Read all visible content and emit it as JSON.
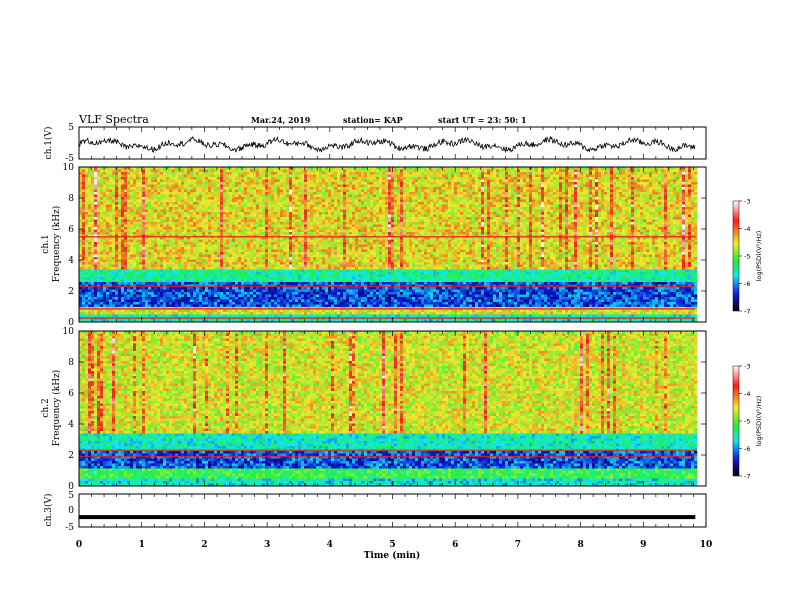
{
  "header": {
    "title": "VLF Spectra",
    "date": "Mar.24, 2019",
    "station": "station= KAP",
    "start": "start  UT  =  23: 50: 1"
  },
  "colors": {
    "blue_low": "#0a14d8",
    "cyan": "#12e8f0",
    "green": "#23f03c",
    "yellow": "#f3ea2c",
    "red": "#e4201c",
    "trace": "#000000"
  },
  "chart_data": [
    {
      "type": "line",
      "name": "ch.1(V) waveform",
      "ylabel": "ch.1(V)",
      "xlim": [
        0,
        10
      ],
      "ylim": [
        -5,
        5
      ],
      "y_ticks": [
        "5",
        "-5"
      ],
      "x_extent_min": 9.83,
      "description_level": "noisy oscillation roughly between -2.5 and 1.5 V"
    },
    {
      "type": "heatmap",
      "ylabel_lines": [
        "ch.1",
        "Frequency (kHz)"
      ],
      "xlim": [
        0,
        9.83
      ],
      "ylim": [
        0,
        10
      ],
      "y_ticks": [
        "0",
        "2",
        "4",
        "6",
        "8",
        "10"
      ],
      "colorbar": {
        "label": "log(PSD)(V²/Hz)",
        "range": [
          -7,
          -3
        ],
        "ticks": [
          "-3",
          "-4",
          "-5",
          "-6",
          "-7"
        ]
      },
      "bands_khz": [
        {
          "from": 0,
          "to": 0.5,
          "level": -5.5
        },
        {
          "from": 0.5,
          "to": 1.0,
          "level": -4.3
        },
        {
          "from": 1.0,
          "to": 2.6,
          "level": -6.2
        },
        {
          "from": 2.6,
          "to": 3.5,
          "level": -5.4
        },
        {
          "from": 3.5,
          "to": 10,
          "level": -4.2
        }
      ],
      "lines_khz": [
        0.25,
        0.85,
        2.3,
        5.5
      ]
    },
    {
      "type": "heatmap",
      "ylabel_lines": [
        "ch.2",
        "Frequency (kHz)"
      ],
      "xlim": [
        0,
        9.83
      ],
      "ylim": [
        0,
        10
      ],
      "y_ticks": [
        "0",
        "2",
        "4",
        "6",
        "8",
        "10"
      ],
      "colorbar": {
        "label": "log(PSD)(V²/Hz)",
        "range": [
          -7,
          -3
        ],
        "ticks": [
          "-3",
          "-4",
          "-5",
          "-6",
          "-7"
        ]
      },
      "bands_khz": [
        {
          "from": 0,
          "to": 0.5,
          "level": -5.6
        },
        {
          "from": 0.5,
          "to": 1.2,
          "level": -5.0
        },
        {
          "from": 1.2,
          "to": 2.3,
          "level": -6.2
        },
        {
          "from": 2.3,
          "to": 3.4,
          "level": -5.5
        },
        {
          "from": 3.4,
          "to": 10,
          "level": -4.3
        }
      ],
      "lines_khz": [
        1.9,
        2.3
      ]
    },
    {
      "type": "line",
      "name": "ch.3(V) waveform",
      "ylabel": "ch.3(V)",
      "xlabel": "Time  (min)",
      "xlim": [
        0,
        10
      ],
      "ylim": [
        -5,
        5
      ],
      "y_ticks": [
        "5",
        "0",
        "-5"
      ],
      "x_ticks": [
        "0",
        "1",
        "2",
        "3",
        "4",
        "5",
        "6",
        "7",
        "8",
        "9",
        "10"
      ],
      "constant_value": -2,
      "x_extent_min": 9.83
    }
  ]
}
